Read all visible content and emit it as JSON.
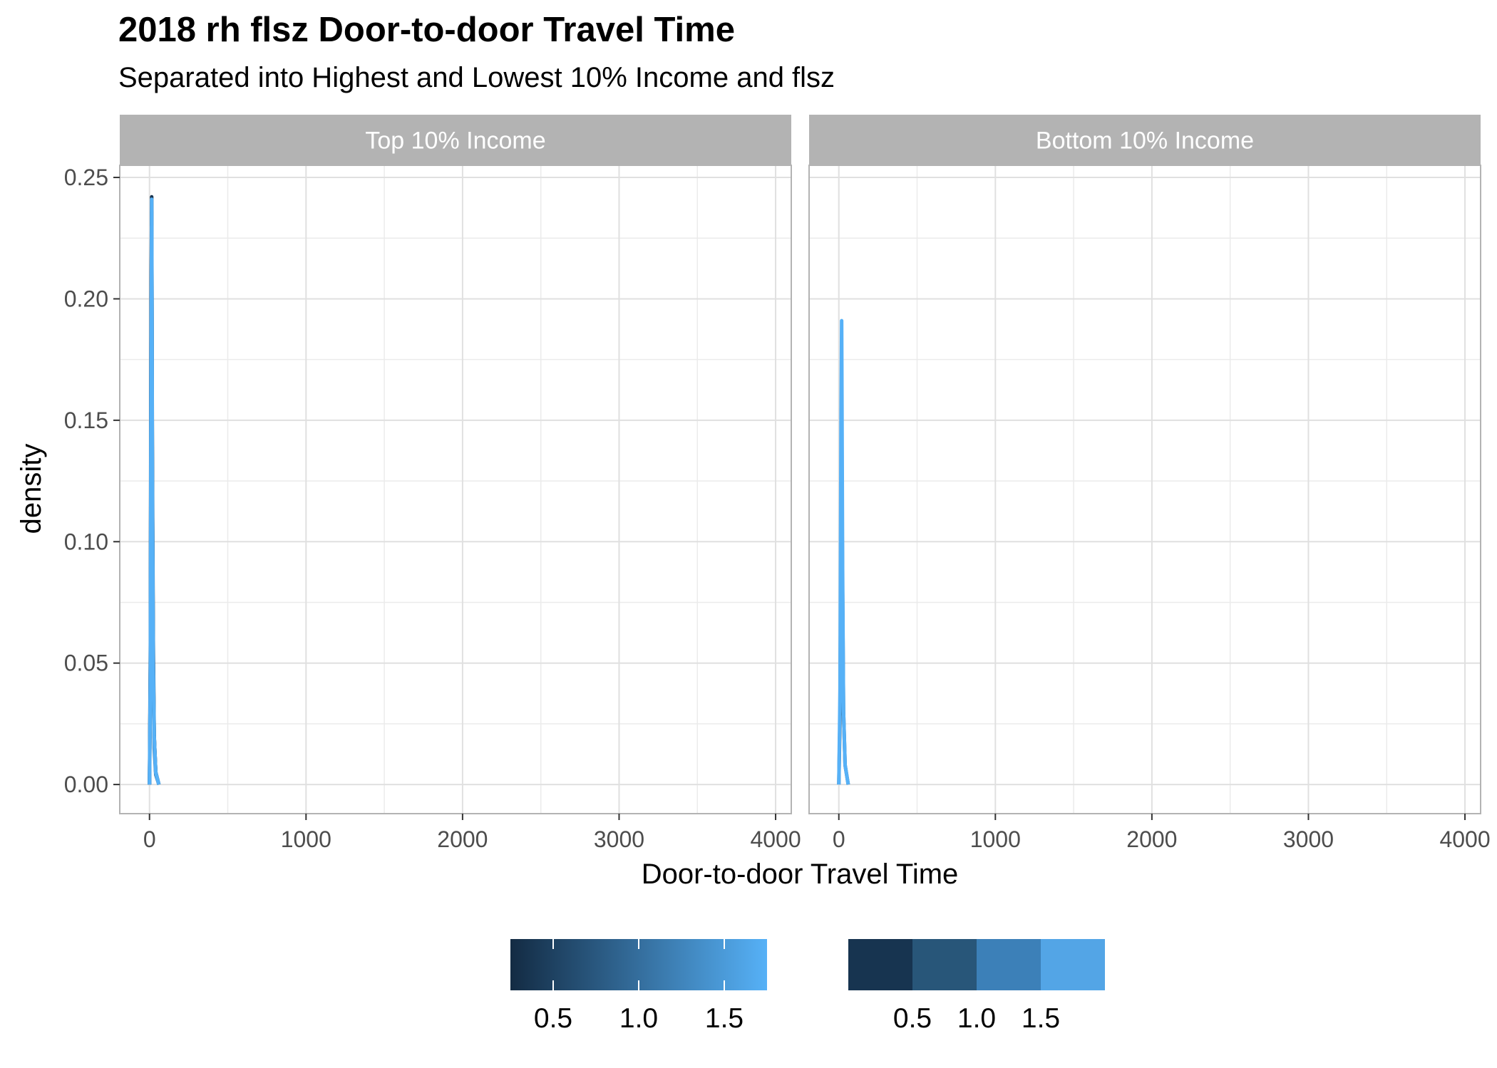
{
  "title": "2018 rh flsz Door-to-door Travel Time",
  "subtitle": "Separated into Highest and Lowest 10% Income and flsz",
  "chart_data": {
    "type": "line",
    "chart_kind": "density",
    "xlabel": "Door-to-door Travel Time",
    "ylabel": "density",
    "xlim": [
      -190,
      4100
    ],
    "ylim": [
      -0.012,
      0.255
    ],
    "x_ticks": [
      0,
      1000,
      2000,
      3000,
      4000
    ],
    "x_tick_labels": [
      "0",
      "1000",
      "2000",
      "3000",
      "4000"
    ],
    "y_ticks": [
      0,
      0.05,
      0.1,
      0.15,
      0.2,
      0.25
    ],
    "y_tick_labels": [
      "0.00",
      "0.05",
      "0.10",
      "0.15",
      "0.20",
      "0.25"
    ],
    "grid": true,
    "facets": [
      {
        "label": "Top 10% Income",
        "series": [
          {
            "color": "#1a3550",
            "x": [
              0,
              6,
              10,
              14,
              18,
              24,
              30,
              40,
              60
            ],
            "y": [
              0.0,
              0.06,
              0.2,
              0.242,
              0.14,
              0.06,
              0.02,
              0.005,
              0.0
            ]
          },
          {
            "color": "#28577c",
            "x": [
              0,
              6,
              10,
              14,
              18,
              24,
              30,
              40,
              60
            ],
            "y": [
              0.0,
              0.05,
              0.18,
              0.236,
              0.13,
              0.05,
              0.02,
              0.005,
              0.0
            ]
          },
          {
            "color": "#3a7fb5",
            "x": [
              0,
              6,
              10,
              14,
              18,
              24,
              30,
              40,
              60
            ],
            "y": [
              0.0,
              0.04,
              0.16,
              0.23,
              0.12,
              0.05,
              0.015,
              0.004,
              0.0
            ]
          },
          {
            "color": "#56b1f7",
            "x": [
              0,
              6,
              10,
              14,
              18,
              24,
              30,
              40,
              60
            ],
            "y": [
              0.0,
              0.05,
              0.17,
              0.241,
              0.13,
              0.05,
              0.02,
              0.005,
              0.0
            ]
          }
        ]
      },
      {
        "label": "Bottom 10% Income",
        "series": [
          {
            "color": "#28577c",
            "x": [
              0,
              8,
              14,
              18,
              24,
              30,
              40,
              60
            ],
            "y": [
              0.0,
              0.03,
              0.11,
              0.14,
              0.08,
              0.03,
              0.008,
              0.0
            ]
          },
          {
            "color": "#56b1f7",
            "x": [
              0,
              8,
              14,
              18,
              24,
              30,
              40,
              60
            ],
            "y": [
              0.0,
              0.04,
              0.15,
              0.191,
              0.09,
              0.03,
              0.008,
              0.0
            ]
          }
        ]
      }
    ],
    "legends": [
      {
        "kind": "colorbar",
        "colors": [
          "#132b43",
          "#56b1f7"
        ],
        "range": [
          0.25,
          1.75
        ],
        "tick_values": [
          0.5,
          1.0,
          1.5
        ],
        "tick_labels": [
          "0.5",
          "1.0",
          "1.5"
        ]
      },
      {
        "kind": "steps",
        "colors": [
          "#173450",
          "#285679",
          "#3c80b8",
          "#53a5e6"
        ],
        "tick_labels": [
          "0.5",
          "1.0",
          "1.5"
        ]
      }
    ],
    "panel_strip_color": "#b3b3b3",
    "strip_text_color": "#ffffff",
    "grid_color": "#e0e0e0"
  }
}
